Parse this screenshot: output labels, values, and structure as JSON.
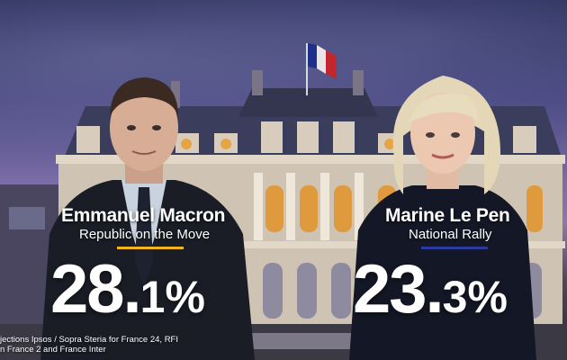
{
  "left_candidate": {
    "name": "Emmanuel Macron",
    "party": "Republic on the Move",
    "score_whole": "28.",
    "score_decimal": "1",
    "score_percent": "%",
    "accent_color": "#f2b51c"
  },
  "right_candidate": {
    "name": "Marine Le Pen",
    "party": "National Rally",
    "score_whole": "23.",
    "score_decimal": "3",
    "score_percent": "%",
    "accent_color": "#2b3a9c"
  },
  "source": {
    "line1": "jections Ipsos / Sopra Steria for France 24, RFI",
    "line2": "n France 2 and France Inter"
  },
  "icons": [
    "french-flag-icon"
  ]
}
